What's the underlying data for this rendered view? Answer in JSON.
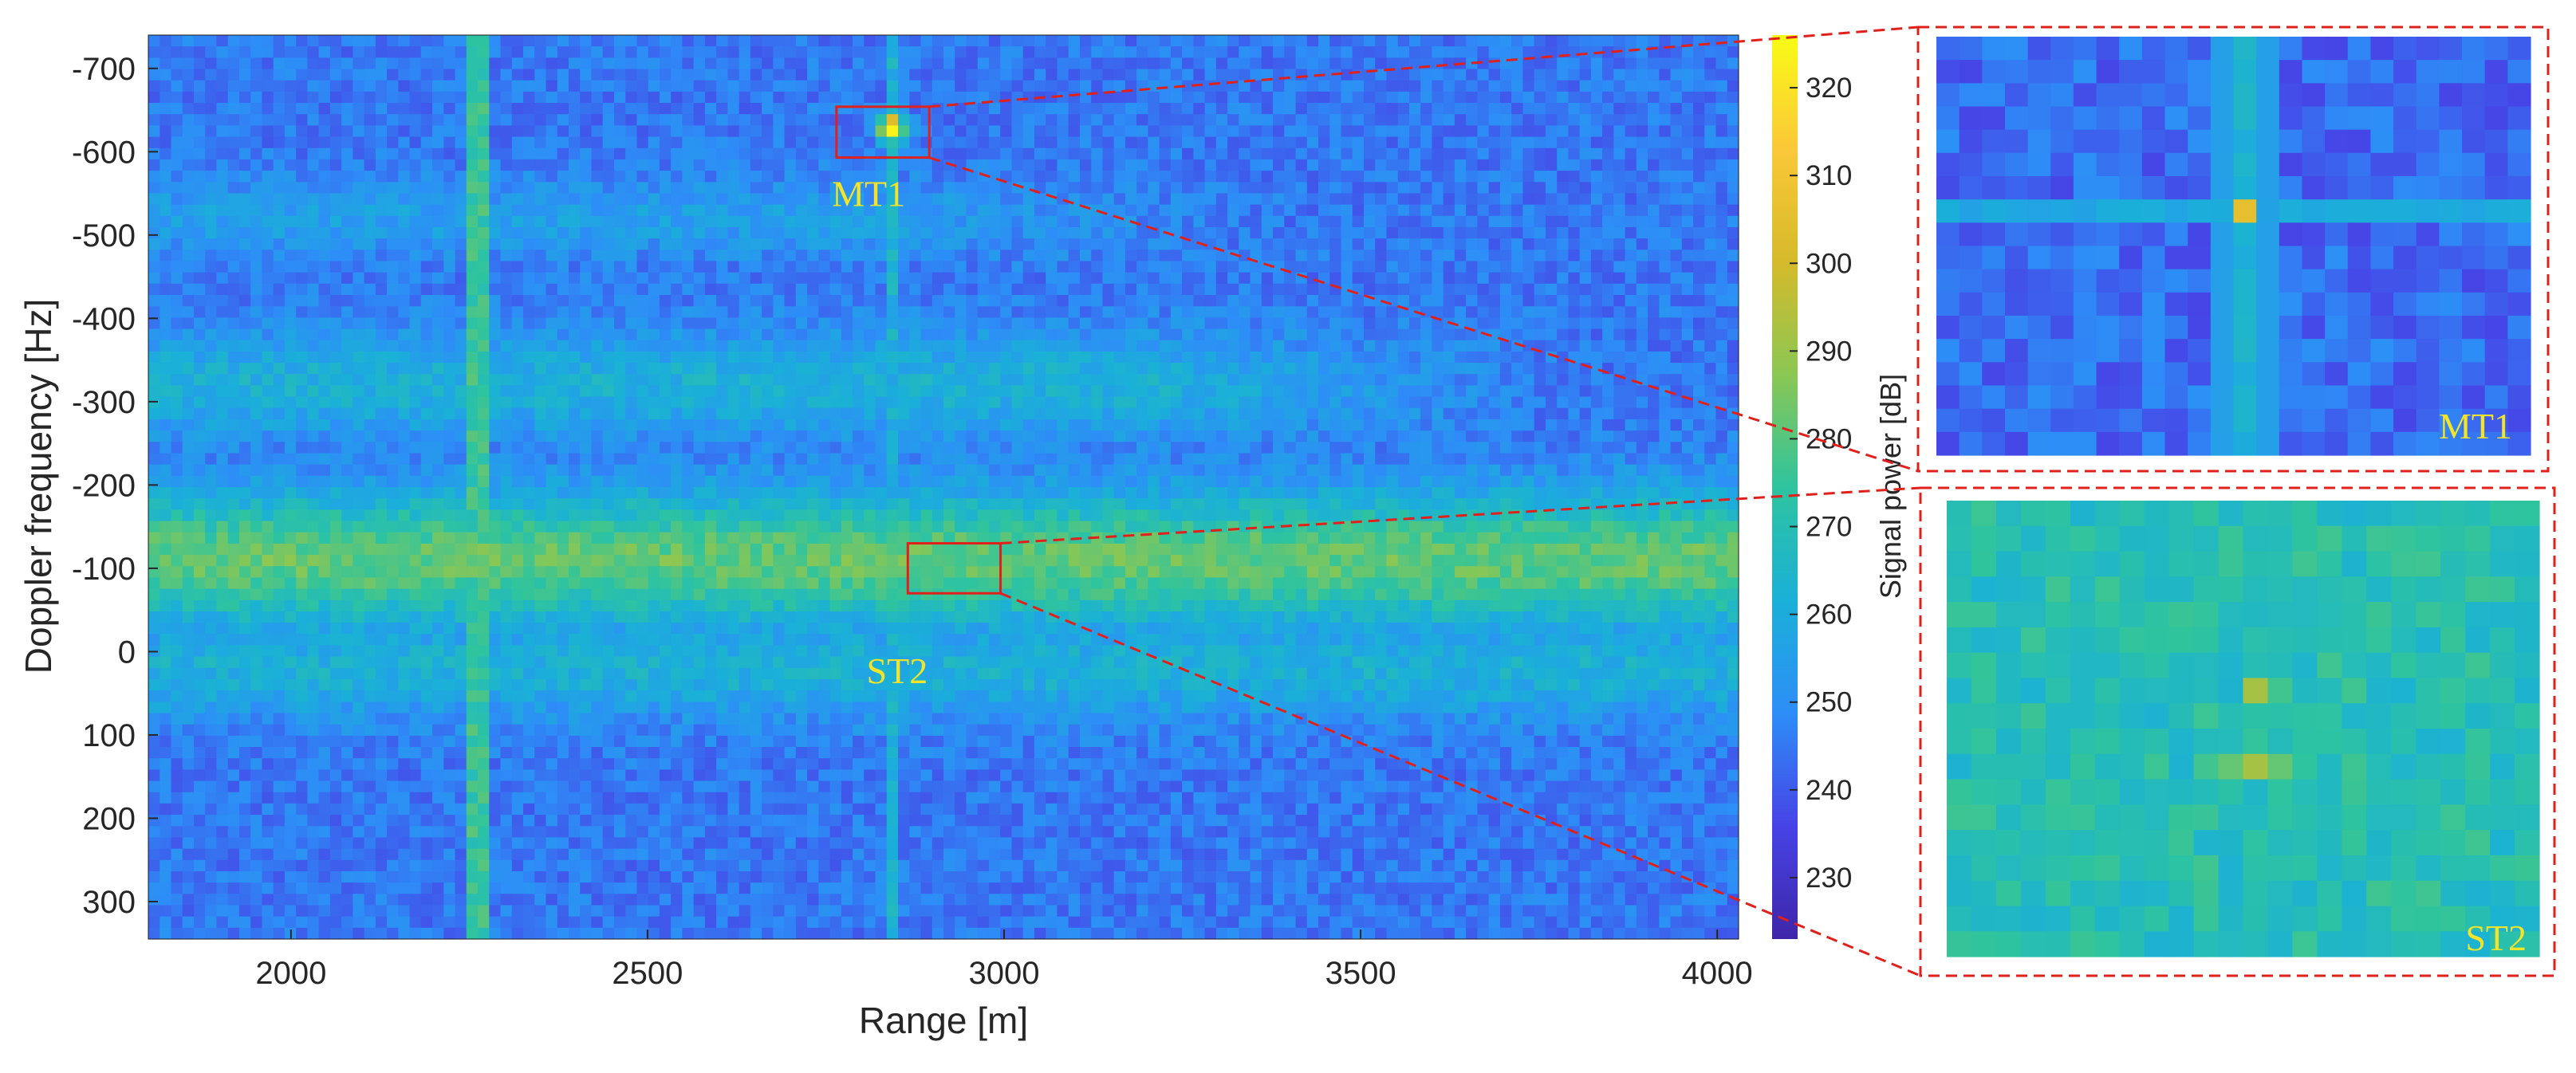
{
  "chart_data": {
    "type": "heatmap",
    "title": "",
    "xlabel": "Range [m]",
    "ylabel": "Doppler frequency [Hz]",
    "xlim": [
      1800,
      4030
    ],
    "ylim_top_to_bottom": [
      -740,
      345
    ],
    "xticks": [
      2000,
      2500,
      3000,
      3500,
      4000
    ],
    "yticks": [
      -700,
      -600,
      -500,
      -400,
      -300,
      -200,
      -100,
      0,
      100,
      200,
      300
    ],
    "xtick_labels": [
      "2000",
      "2500",
      "3000",
      "3500",
      "4000"
    ],
    "ytick_labels": [
      "-700",
      "-600",
      "-500",
      "-400",
      "-300",
      "-200",
      "-100",
      "0",
      "100",
      "200",
      "300"
    ],
    "colorbar": {
      "label": "Signal power [dB]",
      "range": [
        223,
        326
      ],
      "ticks": [
        230,
        240,
        250,
        260,
        270,
        280,
        290,
        300,
        310,
        320
      ],
      "tick_labels": [
        "230",
        "240",
        "250",
        "260",
        "270",
        "280",
        "290",
        "300",
        "310",
        "320"
      ],
      "colormap": [
        "#3e26a8",
        "#4743e6",
        "#2d8ef7",
        "#1ab0d8",
        "#2ec49f",
        "#8bc753",
        "#d6ba2a",
        "#fbc838",
        "#f9fb15"
      ]
    },
    "background_level_db": 245,
    "clutter_bands": [
      {
        "doppler_center_hz": -110,
        "doppler_halfwidth_hz": 95,
        "level_db": 282,
        "range_end_m": 4030
      },
      {
        "doppler_center_hz": 20,
        "doppler_halfwidth_hz": 70,
        "level_db": 262,
        "range_end_m": 4030
      },
      {
        "doppler_center_hz": -320,
        "doppler_halfwidth_hz": 75,
        "level_db": 262,
        "range_end_m": 3200
      },
      {
        "doppler_center_hz": -520,
        "doppler_halfwidth_hz": 55,
        "level_db": 255,
        "range_end_m": 2800
      }
    ],
    "vertical_streaks": [
      {
        "range_m": 2265,
        "level_db": 275
      },
      {
        "range_m": 2843,
        "level_db": 262
      }
    ],
    "targets": [
      {
        "name": "MT1",
        "range_m": 2843,
        "doppler_hz": -628,
        "level_db": 325,
        "box": {
          "range_m": [
            2765,
            2895
          ],
          "doppler_hz": [
            -654,
            -593
          ]
        }
      },
      {
        "name": "ST2",
        "range_m": 2925,
        "doppler_hz": -100,
        "level_db": 290,
        "box": {
          "range_m": [
            2865,
            2995
          ],
          "doppler_hz": [
            -130,
            -70
          ]
        }
      }
    ],
    "annotations": [
      {
        "text": "MT1",
        "range_m": 2810,
        "doppler_hz": -535
      },
      {
        "text": "ST2",
        "range_m": 2850,
        "doppler_hz": 38
      }
    ],
    "insets": [
      {
        "name": "MT1",
        "label": "MT1",
        "source": "MT1",
        "grid_cols": 26,
        "grid_rows": 18,
        "background_db": 243,
        "peak_db": 305
      },
      {
        "name": "ST2",
        "label": "ST2",
        "source": "ST2",
        "grid_cols": 24,
        "grid_rows": 18,
        "background_db": 270,
        "peak_db": 292
      }
    ]
  },
  "colors": {
    "box": "#e0201b",
    "target_label": "#f2e32b",
    "axis_text": "#262626"
  }
}
